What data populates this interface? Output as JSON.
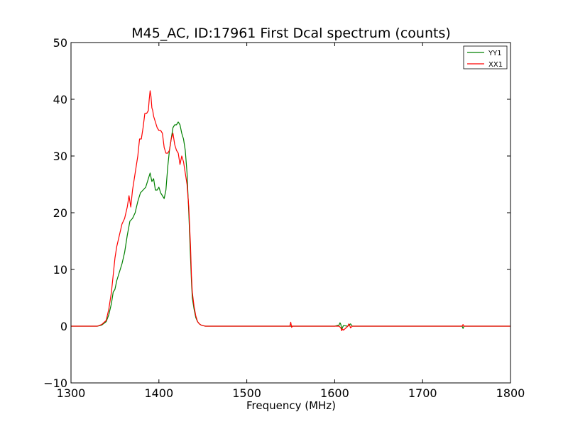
{
  "chart_data": {
    "type": "line",
    "title": "M45_AC, ID:17961 First Dcal spectrum (counts)",
    "xlabel": "Frequency (MHz)",
    "ylabel": "",
    "xlim": [
      1300,
      1800
    ],
    "ylim": [
      -10,
      50
    ],
    "x_ticks": [
      1300,
      1400,
      1500,
      1600,
      1700,
      1800
    ],
    "y_ticks": [
      -10,
      0,
      10,
      20,
      30,
      40,
      50
    ],
    "x_tick_labels": [
      "1300",
      "1400",
      "1500",
      "1600",
      "1700",
      "1800"
    ],
    "y_tick_labels": [
      "−10",
      "0",
      "10",
      "20",
      "30",
      "40",
      "50"
    ],
    "grid": false,
    "legend_position": "top-right",
    "series": [
      {
        "name": "YY1",
        "color": "#008000",
        "x": [
          1300,
          1330,
          1335,
          1340,
          1343,
          1346,
          1348,
          1350,
          1352,
          1355,
          1358,
          1361,
          1364,
          1367,
          1370,
          1373,
          1376,
          1379,
          1382,
          1385,
          1388,
          1390,
          1392,
          1394,
          1396,
          1398,
          1400,
          1402,
          1404,
          1406,
          1408,
          1410,
          1412,
          1414,
          1416,
          1418,
          1420,
          1422,
          1424,
          1426,
          1428,
          1430,
          1432,
          1434,
          1436,
          1437,
          1438,
          1440,
          1442,
          1444,
          1446,
          1448,
          1450,
          1453,
          1456,
          1460,
          1465,
          1470,
          1480,
          1500,
          1550,
          1600,
          1605,
          1606,
          1607,
          1608,
          1610,
          1615,
          1617,
          1618,
          1619,
          1620,
          1630,
          1650,
          1700,
          1745,
          1746,
          1747,
          1750,
          1800
        ],
        "y": [
          0,
          0,
          0.2,
          0.8,
          2,
          4,
          6,
          6.5,
          8,
          9.5,
          11,
          13,
          16,
          18.5,
          19,
          20,
          22,
          23.5,
          24,
          24.5,
          26,
          27,
          25.5,
          26,
          24,
          24,
          24.5,
          23.5,
          23,
          22.5,
          24,
          28,
          31,
          33,
          35,
          35.5,
          35.5,
          36,
          35.5,
          34,
          33,
          31,
          27,
          20,
          12,
          8,
          5,
          3,
          1.5,
          0.8,
          0.4,
          0.2,
          0.1,
          0,
          0,
          0,
          0,
          0,
          0,
          0,
          0,
          0,
          0.2,
          0.6,
          0.3,
          -0.5,
          0.1,
          0,
          0.3,
          0.4,
          0.2,
          0,
          0,
          0,
          0,
          0,
          -0.4,
          0,
          0,
          0
        ]
      },
      {
        "name": "XX1",
        "color": "#ff0000",
        "x": [
          1300,
          1330,
          1335,
          1340,
          1343,
          1346,
          1348,
          1350,
          1352,
          1355,
          1358,
          1361,
          1364,
          1366,
          1368,
          1370,
          1372,
          1374,
          1376,
          1378,
          1380,
          1382,
          1384,
          1386,
          1388,
          1389,
          1390,
          1391,
          1392,
          1393,
          1394,
          1396,
          1398,
          1400,
          1402,
          1404,
          1406,
          1408,
          1410,
          1412,
          1414,
          1416,
          1418,
          1420,
          1422,
          1424,
          1426,
          1428,
          1430,
          1432,
          1434,
          1436,
          1437,
          1438,
          1440,
          1442,
          1444,
          1446,
          1448,
          1450,
          1453,
          1456,
          1460,
          1465,
          1470,
          1480,
          1500,
          1549,
          1550,
          1551,
          1552,
          1600,
          1605,
          1607,
          1608,
          1609,
          1610,
          1615,
          1616,
          1617,
          1618,
          1620,
          1650,
          1700,
          1745,
          1746,
          1747,
          1800
        ],
        "y": [
          0,
          0,
          0.3,
          1,
          3,
          6,
          9,
          12,
          14,
          16,
          18,
          19,
          21,
          23,
          21,
          24,
          26,
          28,
          30,
          33,
          33,
          35,
          37.5,
          37.5,
          38,
          40,
          41.5,
          40.5,
          38.5,
          38,
          37,
          36,
          35,
          34.5,
          34.5,
          34,
          31.5,
          30.5,
          30.5,
          31,
          33,
          34,
          32,
          31,
          30.5,
          28.5,
          30,
          29,
          27,
          25,
          21,
          14,
          9,
          6,
          3.5,
          1.8,
          0.8,
          0.4,
          0.2,
          0.1,
          0,
          0,
          0,
          0,
          0,
          0,
          0,
          0,
          0.7,
          -0.2,
          0,
          0,
          0,
          -0.3,
          -0.8,
          -0.5,
          -0.7,
          0,
          0.4,
          0.2,
          -0.3,
          0,
          0,
          0,
          0,
          0.3,
          0,
          0
        ]
      }
    ]
  }
}
